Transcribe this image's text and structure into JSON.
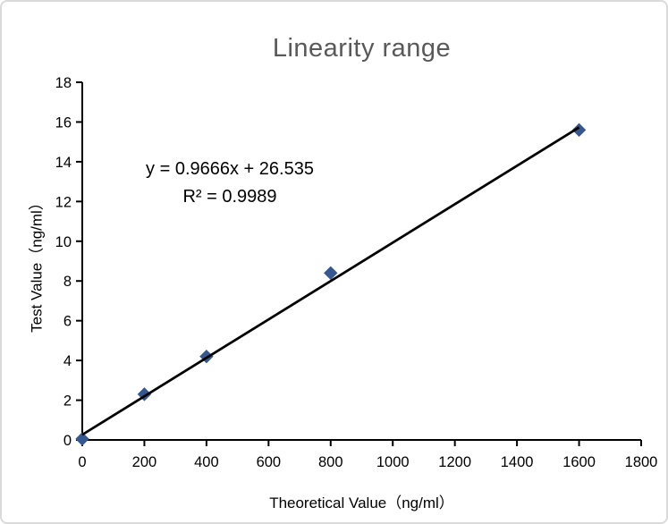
{
  "window": {
    "background": "#ffffff",
    "border_color": "#dadada"
  },
  "chart_data": {
    "type": "scatter",
    "title": "Linearity range",
    "xlabel": "Theoretical Value（ng/ml）",
    "ylabel": "Test Value（ng/ml）",
    "x": [
      0,
      200,
      400,
      800,
      1600
    ],
    "y": [
      0.05,
      2.3,
      4.2,
      8.4,
      15.6
    ],
    "xlim": [
      0,
      1800
    ],
    "ylim": [
      0,
      18
    ],
    "xticks": [
      0,
      200,
      400,
      600,
      800,
      1000,
      1200,
      1400,
      1600,
      1800
    ],
    "yticks": [
      0,
      2,
      4,
      6,
      8,
      10,
      12,
      14,
      16,
      18
    ],
    "grid": false,
    "legend": "none",
    "trendline": {
      "x_start": 0,
      "y_start": 0.265,
      "x_end": 1600,
      "y_end": 15.73,
      "color": "#000000"
    },
    "annotation": {
      "equation": "y = 0.9666x + 26.535",
      "r_squared": "R² = 0.9989"
    },
    "marker": {
      "shape": "diamond",
      "color": "#34588F",
      "size": 7
    },
    "colors": {
      "title": "#595959",
      "axis": "#000000",
      "tick_text": "#000000"
    }
  }
}
